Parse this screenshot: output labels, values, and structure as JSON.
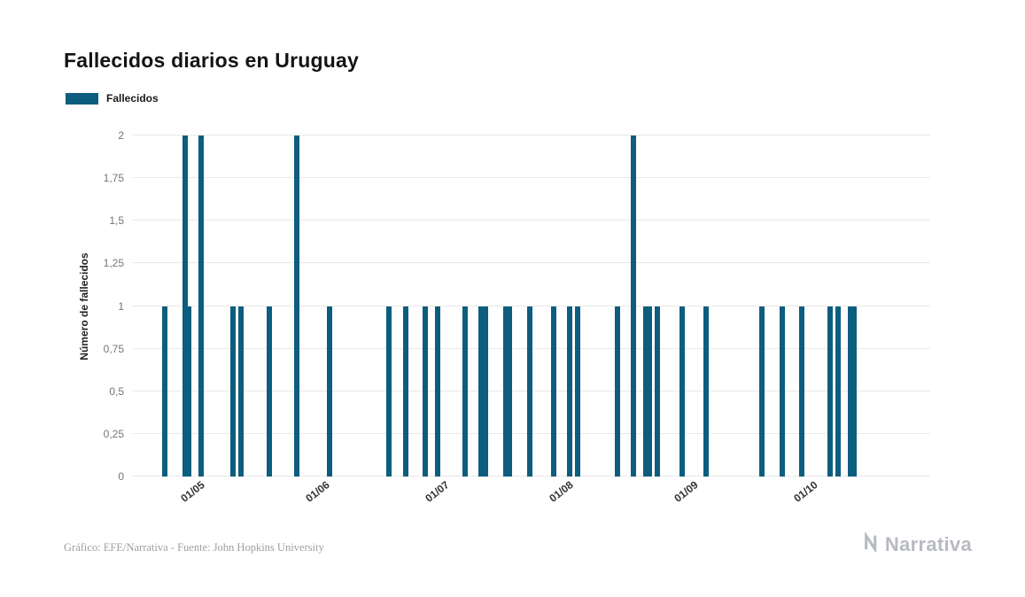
{
  "title": "Fallecidos diarios en Uruguay",
  "legend": {
    "label": "Fallecidos",
    "color": "#0d5d7f"
  },
  "footer": {
    "credit": "Gráfico: EFE/Narrativa - Fuente: John Hopkins University"
  },
  "branding": {
    "name": "Narrativa",
    "logo_icon": "narrativa-n-icon",
    "color": "#b7bbc1"
  },
  "chart_data": {
    "type": "bar",
    "title": "Fallecidos diarios en Uruguay",
    "xlabel": "",
    "ylabel": "Número de fallecidos",
    "ylim": [
      0,
      2
    ],
    "grid": true,
    "legend_position": "top-left",
    "bar_color": "#0d5d7f",
    "x_range": [
      "15/04",
      "31/10"
    ],
    "x_ticks": [
      "01/05",
      "01/06",
      "01/07",
      "01/08",
      "01/09",
      "01/10"
    ],
    "y_ticks": [
      {
        "label": "0",
        "value": 0
      },
      {
        "label": "0,25",
        "value": 0.25
      },
      {
        "label": "0,5",
        "value": 0.5
      },
      {
        "label": "0,75",
        "value": 0.75
      },
      {
        "label": "1",
        "value": 1
      },
      {
        "label": "1,25",
        "value": 1.25
      },
      {
        "label": "1,5",
        "value": 1.5
      },
      {
        "label": "1,75",
        "value": 1.75
      },
      {
        "label": "2",
        "value": 2
      }
    ],
    "series": [
      {
        "name": "Fallecidos",
        "points": [
          {
            "date": "23/04",
            "value": 1
          },
          {
            "date": "28/04",
            "value": 2
          },
          {
            "date": "29/04",
            "value": 1
          },
          {
            "date": "02/05",
            "value": 2
          },
          {
            "date": "10/05",
            "value": 1
          },
          {
            "date": "12/05",
            "value": 1
          },
          {
            "date": "19/05",
            "value": 1
          },
          {
            "date": "26/05",
            "value": 2
          },
          {
            "date": "03/06",
            "value": 1
          },
          {
            "date": "18/06",
            "value": 1
          },
          {
            "date": "22/06",
            "value": 1
          },
          {
            "date": "27/06",
            "value": 1
          },
          {
            "date": "30/06",
            "value": 1
          },
          {
            "date": "07/07",
            "value": 1
          },
          {
            "date": "11/07",
            "value": 1
          },
          {
            "date": "12/07",
            "value": 1
          },
          {
            "date": "17/07",
            "value": 1
          },
          {
            "date": "18/07",
            "value": 1
          },
          {
            "date": "23/07",
            "value": 1
          },
          {
            "date": "29/07",
            "value": 1
          },
          {
            "date": "02/08",
            "value": 1
          },
          {
            "date": "04/08",
            "value": 1
          },
          {
            "date": "14/08",
            "value": 1
          },
          {
            "date": "18/08",
            "value": 2
          },
          {
            "date": "21/08",
            "value": 1
          },
          {
            "date": "22/08",
            "value": 1
          },
          {
            "date": "24/08",
            "value": 1
          },
          {
            "date": "30/08",
            "value": 1
          },
          {
            "date": "05/09",
            "value": 1
          },
          {
            "date": "19/09",
            "value": 1
          },
          {
            "date": "24/09",
            "value": 1
          },
          {
            "date": "29/09",
            "value": 1
          },
          {
            "date": "06/10",
            "value": 1
          },
          {
            "date": "08/10",
            "value": 1
          },
          {
            "date": "11/10",
            "value": 1
          },
          {
            "date": "12/10",
            "value": 1
          }
        ]
      }
    ]
  }
}
